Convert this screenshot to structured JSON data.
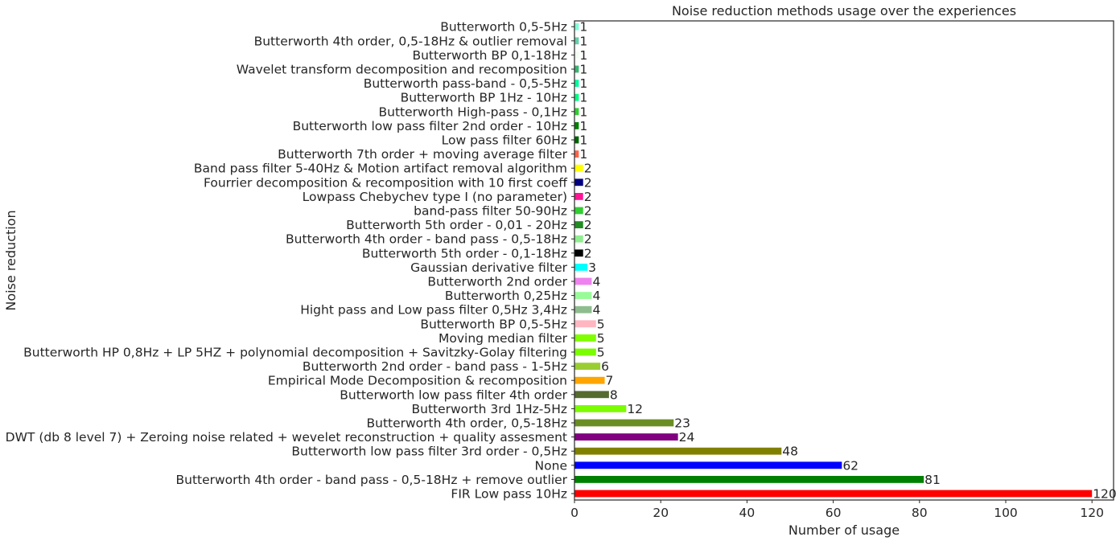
{
  "chart_data": {
    "type": "bar",
    "orientation": "horizontal",
    "title": "Noise reduction methods usage over the experiences",
    "xlabel": "Number of usage",
    "ylabel": "Noise reduction",
    "xlim": [
      0,
      125
    ],
    "xticks": [
      0,
      20,
      40,
      60,
      80,
      100,
      120
    ],
    "grid": false,
    "categories": [
      "FIR Low pass 10Hz",
      "Butterworth 4th order - band pass -  0,5-18Hz + remove outlier",
      "None",
      "Butterworth low pass filter 3rd order - 0,5Hz",
      "DWT (db 8 level 7) + Zeroing noise related + wevelet reconstruction + quality assesment",
      "Butterworth 4th order, 0,5-18Hz",
      "Butterworth 3rd 1Hz-5Hz",
      "Butterworth low pass filter 4th order",
      "Empirical Mode Decomposition & recomposition",
      "Butterworth 2nd order - band pass - 1-5Hz",
      "Butterworth HP 0,8Hz + LP 5HZ + polynomial decomposition + Savitzky-Golay filtering",
      "Moving median filter",
      "Butterworth BP 0,5-5Hz",
      "Hight pass and Low pass filter 0,5Hz 3,4Hz",
      "Butterworth 0,25Hz",
      "Butterworth 2nd order",
      "Gaussian derivative filter",
      "Butterworth 5th order - 0,1-18Hz",
      "Butterworth 4th order - band pass -  0,5-18Hz",
      "Butterworth 5th order - 0,01 - 20Hz",
      "band-pass filter 50-90Hz",
      "Lowpass Chebychev type I (no parameter)",
      "Fourrier decomposition & recomposition with 10 first coeff",
      "Band pass filter 5-40Hz & Motion artifact removal algorithm",
      "Butterworth 7th order + moving average filter",
      "Low pass filter 60Hz",
      "Butterworth low pass filter 2nd order - 10Hz",
      "Butterworth High-pass - 0,1Hz",
      "Butterworth BP 1Hz - 10Hz",
      "Butterworth pass-band - 0,5-5Hz",
      "Wavelet transform decomposition and recomposition",
      "Butterworth BP 0,1-18Hz",
      "Butterworth 4th order, 0,5-18Hz & outlier removal",
      "Butterworth 0,5-5Hz"
    ],
    "values": [
      120,
      81,
      62,
      48,
      24,
      23,
      12,
      8,
      7,
      6,
      5,
      5,
      5,
      4,
      4,
      4,
      3,
      2,
      2,
      2,
      2,
      2,
      2,
      2,
      1,
      1,
      1,
      1,
      1,
      1,
      1,
      1,
      1,
      1
    ],
    "colors": [
      "#ff0000",
      "#008000",
      "#0000ff",
      "#808000",
      "#800080",
      "#6b8e23",
      "#7cfc00",
      "#556b2f",
      "#ffa500",
      "#9acd32",
      "#7cfc00",
      "#7fff00",
      "#ffb6c1",
      "#8fbc8f",
      "#98fb98",
      "#ee82ee",
      "#00ffff",
      "#000000",
      "#90ee90",
      "#228b22",
      "#32cd32",
      "#ff1493",
      "#000080",
      "#ffff00",
      "#ff6347",
      "#006400",
      "#008000",
      "#32cd32",
      "#00ff7f",
      "#00fa9a",
      "#3cb371",
      "#f0fff0",
      "#66cdaa",
      "#7fffd4"
    ]
  }
}
